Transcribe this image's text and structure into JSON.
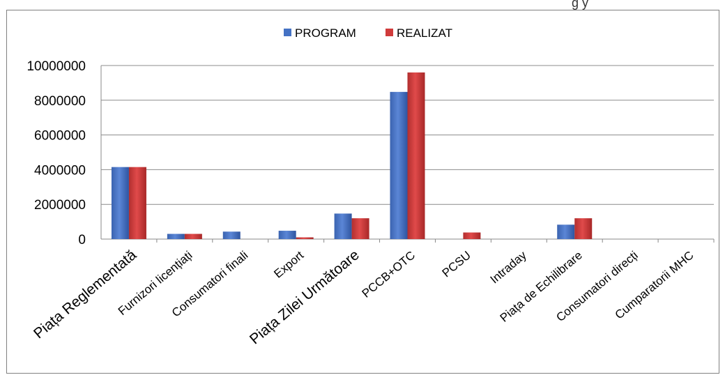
{
  "chart_data": {
    "type": "bar",
    "categories": [
      "Piața Reglementată",
      "Furnizori licențiați",
      "Consumatori finali",
      "Export",
      "Piața Zilei Următoare",
      "PCCB+OTC",
      "PCSU",
      "Intraday",
      "Piața de Echilibrare",
      "Consumatori direcți",
      "Cumparatorii MHC"
    ],
    "series": [
      {
        "name": "PROGRAM",
        "color": "#4472C4",
        "values": [
          4150000,
          300000,
          430000,
          480000,
          1470000,
          8480000,
          0,
          0,
          830000,
          0,
          0
        ]
      },
      {
        "name": "REALIZAT",
        "color": "#D03B3B",
        "values": [
          4150000,
          300000,
          0,
          100000,
          1200000,
          9600000,
          380000,
          0,
          1200000,
          0,
          0
        ]
      }
    ],
    "yticks": [
      "10000000",
      "8000000",
      "6000000",
      "4000000",
      "2000000",
      "0"
    ],
    "ylim": [
      0,
      10000000
    ],
    "grid": true,
    "legend": "top-center"
  },
  "fragment_text": "g y"
}
